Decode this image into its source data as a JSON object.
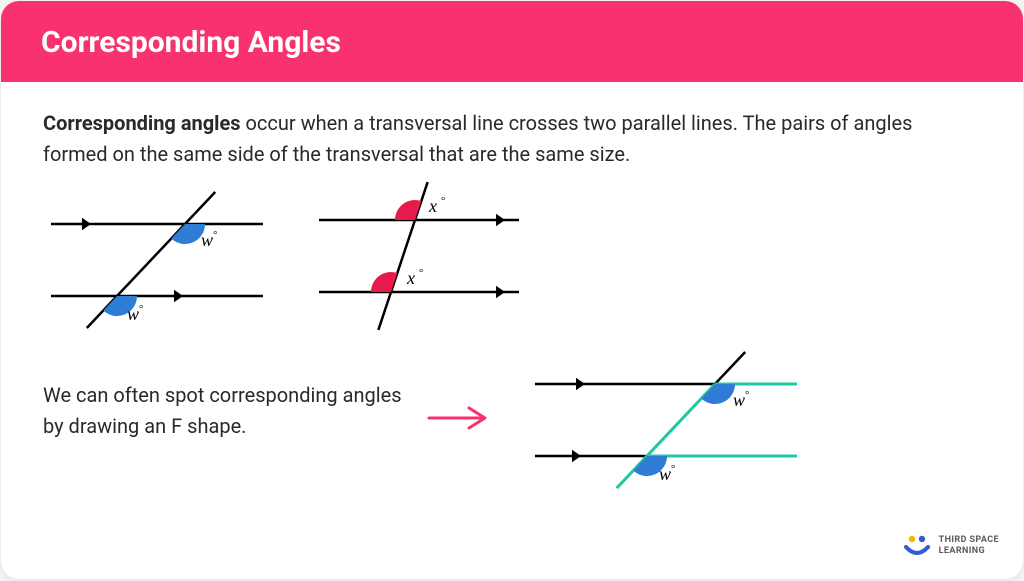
{
  "header": {
    "title": "Corresponding Angles",
    "background_color": "#f8326e",
    "text_color": "#ffffff",
    "title_fontsize": 30
  },
  "body": {
    "text_color": "#2a2a2a",
    "paragraph1_strong": "Corresponding angles",
    "paragraph1_rest": " occur when a transversal line crosses two parallel lines. The pairs of angles formed on the same side of the transversal that are the same size.",
    "paragraph2": "We can often spot corresponding angles by drawing an F shape.",
    "fontsize": 20
  },
  "diagram_left": {
    "type": "geometry",
    "line_color": "#000000",
    "line_width": 2.5,
    "angle_fill": "#2e7cd6",
    "angle_label": "w",
    "angle_label_degree": "°",
    "parallel_lines_y": [
      30,
      100
    ],
    "transversal_angle": 58
  },
  "diagram_mid": {
    "type": "geometry",
    "line_color": "#000000",
    "line_width": 2.5,
    "angle_fill": "#e71b4b",
    "angle_label": "x",
    "angle_label_degree": "°",
    "parallel_lines_y": [
      30,
      100
    ],
    "transversal_angle": 74
  },
  "diagram_right": {
    "type": "geometry",
    "line_color": "#000000",
    "line_width": 2.5,
    "f_shape_color": "#1fc9a3",
    "f_shape_width": 3,
    "angle_fill": "#2e7cd6",
    "angle_label": "w",
    "angle_label_degree": "°",
    "arrow_color": "#f8326e",
    "parallel_lines_y": [
      30,
      100
    ],
    "transversal_angle": 58
  },
  "logo": {
    "text_line1": "THIRD SPACE",
    "text_line2": "LEARNING",
    "dot_color1": "#ffb300",
    "dot_color2": "#2e5fd6",
    "arc_color": "#2e5fd6"
  }
}
